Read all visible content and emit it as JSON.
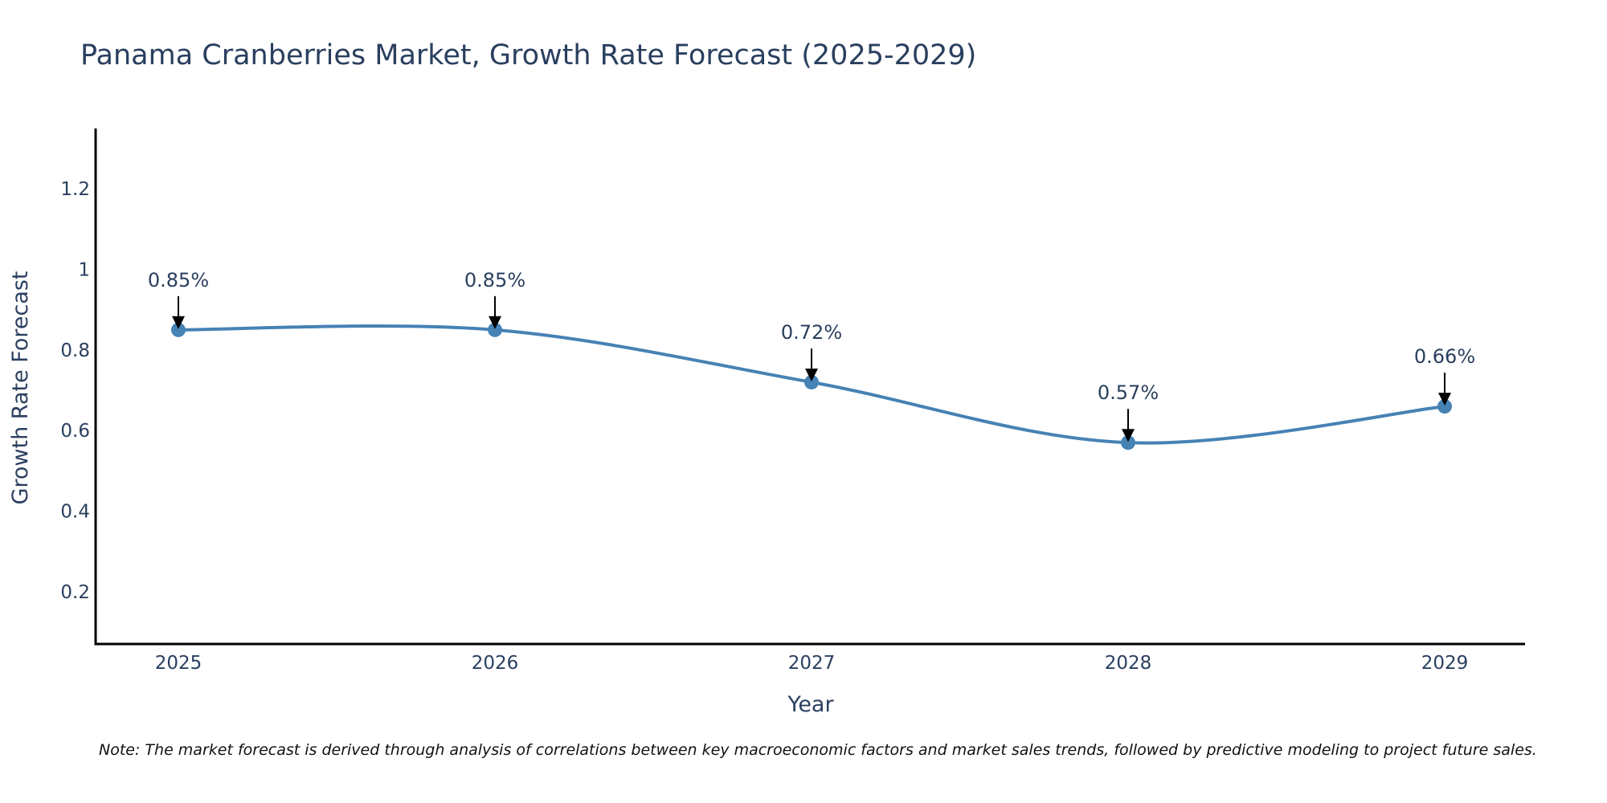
{
  "chart_data": {
    "type": "line",
    "title": "Panama Cranberries Market, Growth Rate Forecast (2025-2029)",
    "xlabel": "Year",
    "ylabel": "Growth Rate Forecast",
    "categories": [
      "2025",
      "2026",
      "2027",
      "2028",
      "2029"
    ],
    "values": [
      0.85,
      0.85,
      0.72,
      0.57,
      0.66
    ],
    "data_labels": [
      "0.85%",
      "0.85%",
      "0.72%",
      "0.57%",
      "0.66%"
    ],
    "ylim": [
      0.07,
      1.35
    ],
    "yticks": [
      0.2,
      0.4,
      0.6,
      0.8,
      1,
      1.2
    ],
    "ytick_labels": [
      "0.2",
      "0.4",
      "0.6",
      "0.8",
      "1",
      "1.2"
    ],
    "grid": false,
    "legend": "none",
    "line_shape": "spline",
    "colors": {
      "line": "#4682b4",
      "marker": "#4682b4",
      "axis": "#000000",
      "text": "#2a3f5f",
      "arrow": "#000000"
    },
    "note": "Note: The market forecast is derived through analysis of correlations between key macroeconomic factors and market sales trends, followed by predictive modeling to project future sales."
  }
}
